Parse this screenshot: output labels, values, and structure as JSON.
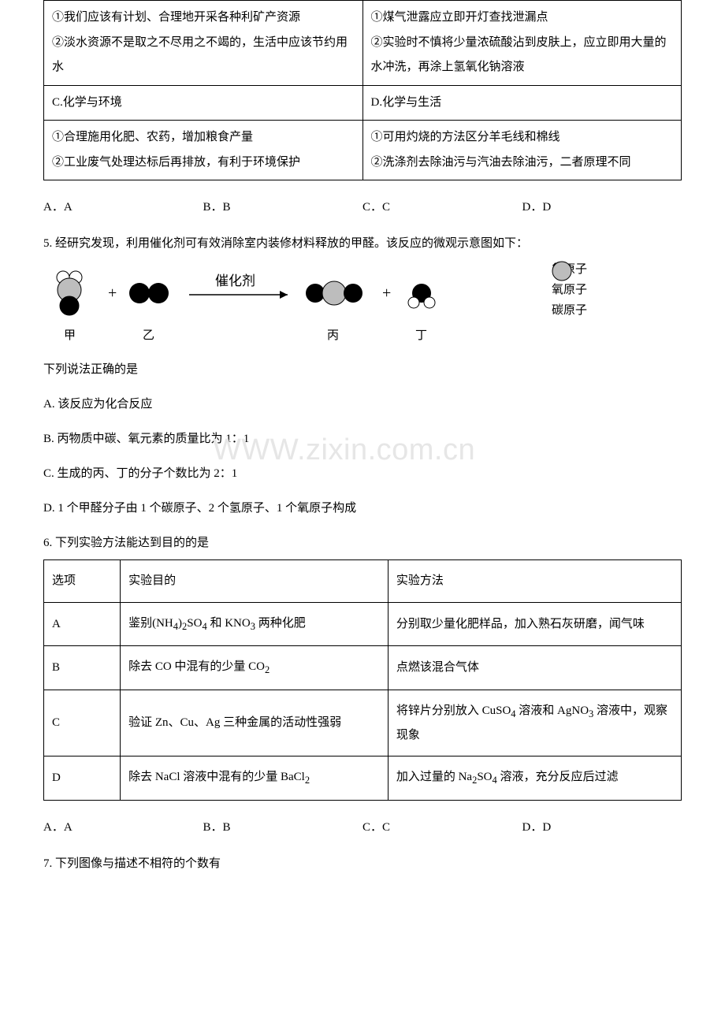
{
  "table1": {
    "r1c1_l1": "①我们应该有计划、合理地开采各种利矿产资源",
    "r1c1_l2": "②淡水资源不是取之不尽用之不竭的，生活中应该节约用水",
    "r1c2_l1": "①煤气泄露应立即开灯查找泄漏点",
    "r1c2_l2": "②实验时不慎将少量浓硫酸沾到皮肤上，应立即用大量的水冲洗，再涂上氢氧化钠溶液",
    "r2c1": "C.化学与环境",
    "r2c2": "D.化学与生活",
    "r3c1_l1": "①合理施用化肥、农药，增加粮食产量",
    "r3c1_l2": "②工业废气处理达标后再排放，有利于环境保护",
    "r3c2_l1": "①可用灼烧的方法区分羊毛线和棉线",
    "r3c2_l2": "②洗涤剂去除油污与汽油去除油污，二者原理不同"
  },
  "opts1": {
    "a": "A．A",
    "b": "B．B",
    "c": "C．C",
    "d": "D．D"
  },
  "q5": {
    "stem": "5. 经研究发现，利用催化剂可有效消除室内装修材料释放的甲醛。该反应的微观示意图如下：",
    "choices_label": "下列说法正确的是",
    "a": "A. 该反应为化合反应",
    "b": "B. 丙物质中碳、氧元素的质量比为 1：1",
    "c": "C. 生成的丙、丁的分子个数比为 2：1",
    "d": "D. 1 个甲醛分子由 1 个碳原子、2 个氢原子、1 个氧原子构成"
  },
  "diagram": {
    "catalyst": "催化剂",
    "labels": {
      "jia": "甲",
      "yi": "乙",
      "bing": "丙",
      "ding": "丁"
    },
    "legend": {
      "h": "氢原子",
      "o": "氧原子",
      "c": "碳原子"
    },
    "colors": {
      "h_fill": "#ffffff",
      "h_stroke": "#000000",
      "o_fill": "#000000",
      "o_stroke": "#000000",
      "c_fill": "#bdbdbd",
      "c_stroke": "#000000",
      "arrow": "#000000"
    }
  },
  "q6": {
    "stem": "6. 下列实验方法能达到目的的是",
    "header": {
      "c1": "选项",
      "c2": "实验目的",
      "c3": "实验方法"
    },
    "rows": [
      {
        "opt": "A",
        "goal_html": "鉴别(NH<sub>4</sub>)<sub>2</sub>SO<sub>4</sub> 和 KNO<sub>3</sub> 两种化肥",
        "method": "分别取少量化肥样品，加入熟石灰研磨，闻气味"
      },
      {
        "opt": "B",
        "goal_html": "除去 CO 中混有的少量 CO<sub>2</sub>",
        "method": "点燃该混合气体"
      },
      {
        "opt": "C",
        "goal_html": "验证 Zn、Cu、Ag 三种金属的活动性强弱",
        "method_html": "将锌片分别放入 CuSO<sub>4</sub> 溶液和 AgNO<sub>3</sub> 溶液中，观察现象"
      },
      {
        "opt": "D",
        "goal_html": "除去 NaCl 溶液中混有的少量 BaCl<sub>2</sub>",
        "method_html": "加入过量的 Na<sub>2</sub>SO<sub>4</sub> 溶液，充分反应后过滤"
      }
    ]
  },
  "opts2": {
    "a": "A．A",
    "b": "B．B",
    "c": "C．C",
    "d": "D．D"
  },
  "q7": "7. 下列图像与描述不相符的个数有",
  "watermark": "WWW.zixin.com.cn"
}
